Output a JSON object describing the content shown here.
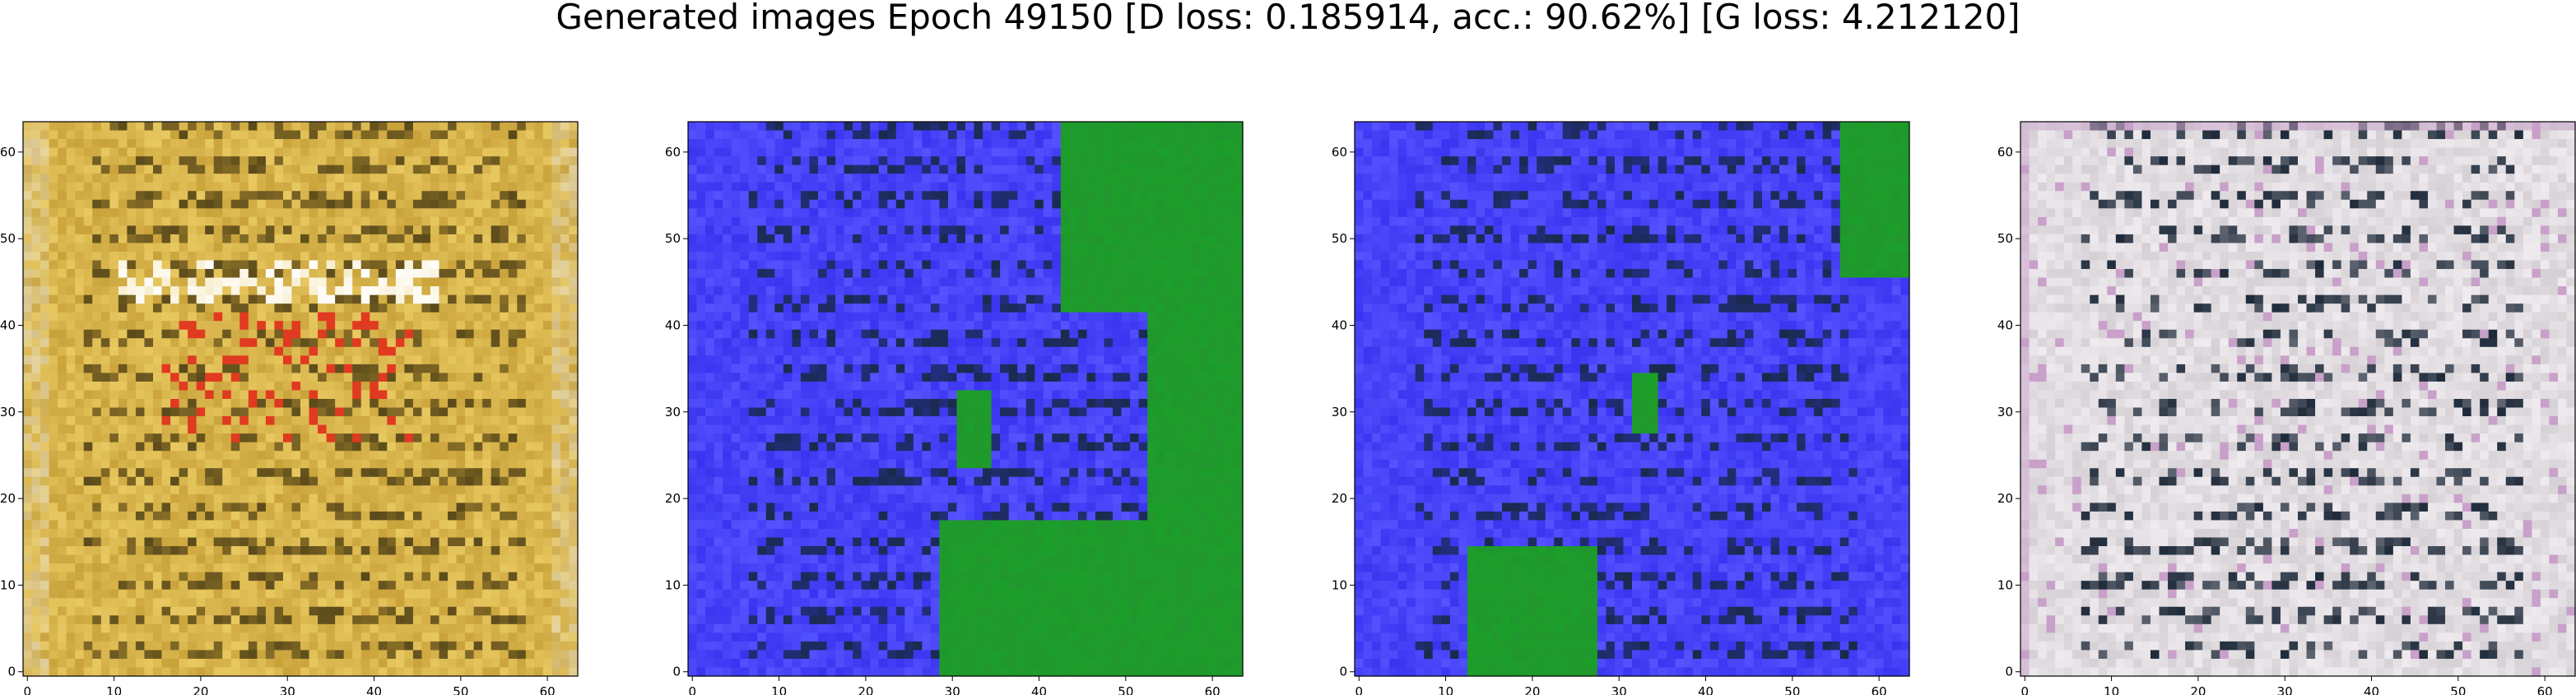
{
  "figure_title": "Generated images Epoch 49150 [D loss: 0.185914, acc.: 90.62%] [G loss: 4.212120]",
  "chart_data": {
    "type": "heatmap",
    "grid_size": 64,
    "xlim": [
      -0.5,
      63.5
    ],
    "ylim": [
      63.5,
      -0.5
    ],
    "x_ticks": [
      0,
      10,
      20,
      30,
      40,
      50,
      60
    ],
    "y_ticks": [
      0,
      10,
      20,
      30,
      40,
      50,
      60
    ],
    "grid": false,
    "panels": [
      {
        "name": "sample-1",
        "palette": "gold",
        "base": "#c9a23a",
        "accent": "#e8c860",
        "dark": "#5a4a1a",
        "highlight": "#ffffff",
        "hot": "#e03a20"
      },
      {
        "name": "sample-2",
        "palette": "blue-green",
        "base": "#3a34f0",
        "accent": "#5552ff",
        "dark": "#1a2a4a",
        "green": "#1c9e2a"
      },
      {
        "name": "sample-3",
        "palette": "blue-green",
        "base": "#3a34f0",
        "accent": "#5552ff",
        "dark": "#1a2a4a",
        "green": "#1c9e2a"
      },
      {
        "name": "sample-4",
        "palette": "grey",
        "base": "#d4d0d4",
        "accent": "#eeeaee",
        "dark": "#1e2a3a",
        "tint": "#c9a0c9"
      }
    ]
  }
}
